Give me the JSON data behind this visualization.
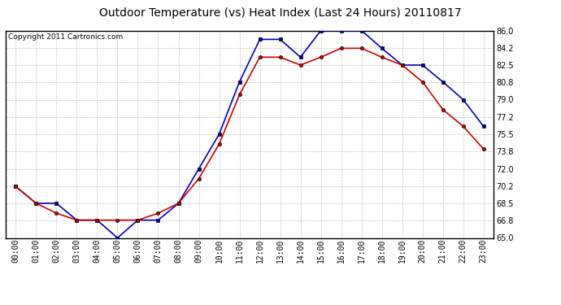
{
  "title": "Outdoor Temperature (vs) Heat Index (Last 24 Hours) 20110817",
  "copyright": "Copyright 2011 Cartronics.com",
  "x_labels": [
    "00:00",
    "01:00",
    "02:00",
    "03:00",
    "04:00",
    "05:00",
    "06:00",
    "07:00",
    "08:00",
    "09:00",
    "10:00",
    "11:00",
    "12:00",
    "13:00",
    "14:00",
    "15:00",
    "16:00",
    "17:00",
    "18:00",
    "19:00",
    "20:00",
    "21:00",
    "22:00",
    "23:00"
  ],
  "temp_blue": [
    70.2,
    68.5,
    68.5,
    66.8,
    66.8,
    65.0,
    66.8,
    66.8,
    68.5,
    72.0,
    75.5,
    80.8,
    85.1,
    85.1,
    83.3,
    86.0,
    86.0,
    86.0,
    84.2,
    82.5,
    82.5,
    80.8,
    79.0,
    76.3
  ],
  "heat_red": [
    70.2,
    68.5,
    67.5,
    66.8,
    66.8,
    66.8,
    66.8,
    67.5,
    68.5,
    71.0,
    74.5,
    79.5,
    83.3,
    83.3,
    82.5,
    83.3,
    84.2,
    84.2,
    83.3,
    82.5,
    80.8,
    78.0,
    76.3,
    74.0
  ],
  "ylim": [
    65.0,
    86.0
  ],
  "yticks": [
    65.0,
    66.8,
    68.5,
    70.2,
    72.0,
    73.8,
    75.5,
    77.2,
    79.0,
    80.8,
    82.5,
    84.2,
    86.0
  ],
  "blue_color": "#0000bb",
  "red_color": "#cc0000",
  "bg_color": "#ffffff",
  "grid_color": "#bbbbbb",
  "title_fontsize": 10,
  "copyright_fontsize": 6.5,
  "tick_fontsize": 7,
  "ytick_fontsize": 7
}
